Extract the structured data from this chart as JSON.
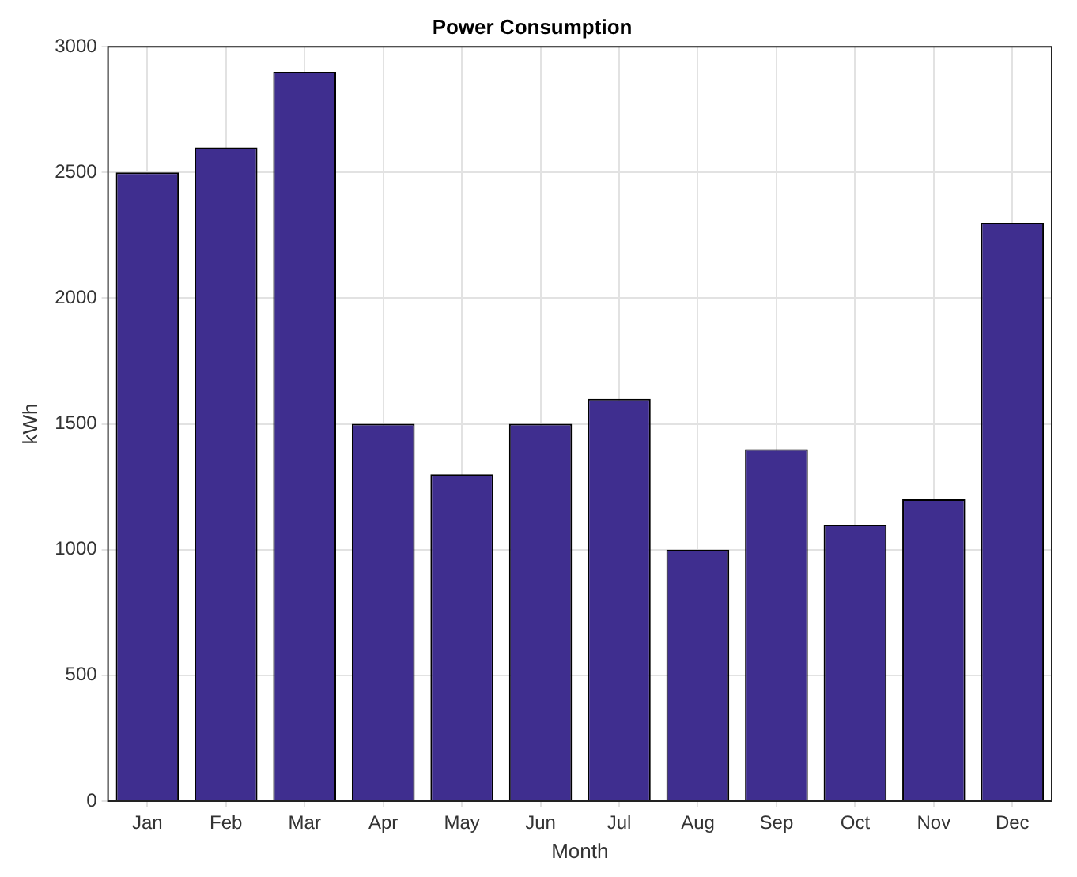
{
  "chart_data": {
    "type": "bar",
    "title": "Power Consumption",
    "xlabel": "Month",
    "ylabel": "kWh",
    "categories": [
      "Jan",
      "Feb",
      "Mar",
      "Apr",
      "May",
      "Jun",
      "Jul",
      "Aug",
      "Sep",
      "Oct",
      "Nov",
      "Dec"
    ],
    "values": [
      2500,
      2600,
      2900,
      1500,
      1300,
      1500,
      1600,
      1000,
      1400,
      1100,
      1200,
      2300
    ],
    "color": "#3f2e8f",
    "ylim": [
      0,
      3000
    ],
    "yticks": [
      0,
      500,
      1000,
      1500,
      2000,
      2500,
      3000
    ],
    "grid": true
  }
}
